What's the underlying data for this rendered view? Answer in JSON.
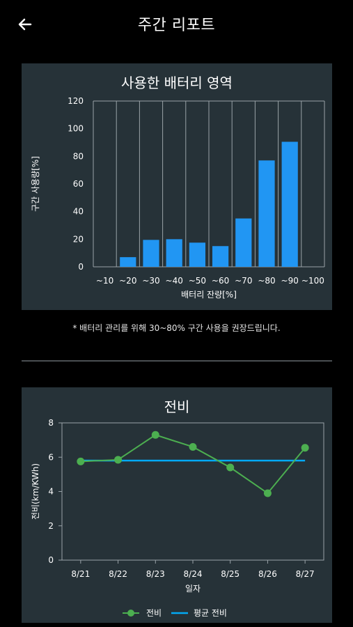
{
  "header": {
    "title": "주간 리포트",
    "back_icon": "arrow-left-icon"
  },
  "colors": {
    "background": "#000000",
    "card": "#263238",
    "bar": "#2196F3",
    "line_green": "#4CAF50",
    "line_blue": "#03A9F4",
    "grid": "#9aa3a8"
  },
  "battery_card": {
    "title": "사용한 배터리 영역",
    "chart_data": {
      "type": "bar",
      "title": "사용한 배터리 영역",
      "xlabel": "배터리 잔량[%]",
      "ylabel": "구간 사용량[%]",
      "categories": [
        "~10",
        "~20",
        "~30",
        "~40",
        "~50",
        "~60",
        "~70",
        "~80",
        "~90",
        "~100"
      ],
      "values": [
        0,
        7,
        19.5,
        20,
        17.5,
        15,
        35,
        77,
        90.5,
        0
      ],
      "ylim": [
        0,
        120
      ],
      "yticks": [
        0,
        20,
        40,
        60,
        80,
        100,
        120
      ],
      "grid": "vertical"
    }
  },
  "note": "* 배터리 관리를 위해 30~80% 구간 사용을 권장드립니다.",
  "efficiency_card": {
    "title": "전비",
    "chart_data": {
      "type": "line",
      "title": "전비",
      "xlabel": "일자",
      "ylabel": "전비(km/KWh)",
      "categories": [
        "8/21",
        "8/22",
        "8/23",
        "8/24",
        "8/25",
        "8/26",
        "8/27"
      ],
      "series": [
        {
          "name": "전비",
          "values": [
            5.75,
            5.85,
            7.3,
            6.6,
            5.4,
            3.9,
            6.55
          ]
        },
        {
          "name": "평균 전비",
          "values": [
            5.8,
            5.8,
            5.8,
            5.8,
            5.8,
            5.8,
            5.8
          ]
        }
      ],
      "ylim": [
        0,
        8
      ],
      "yticks": [
        0,
        2,
        4,
        6,
        8
      ],
      "legend": "bottom"
    }
  }
}
